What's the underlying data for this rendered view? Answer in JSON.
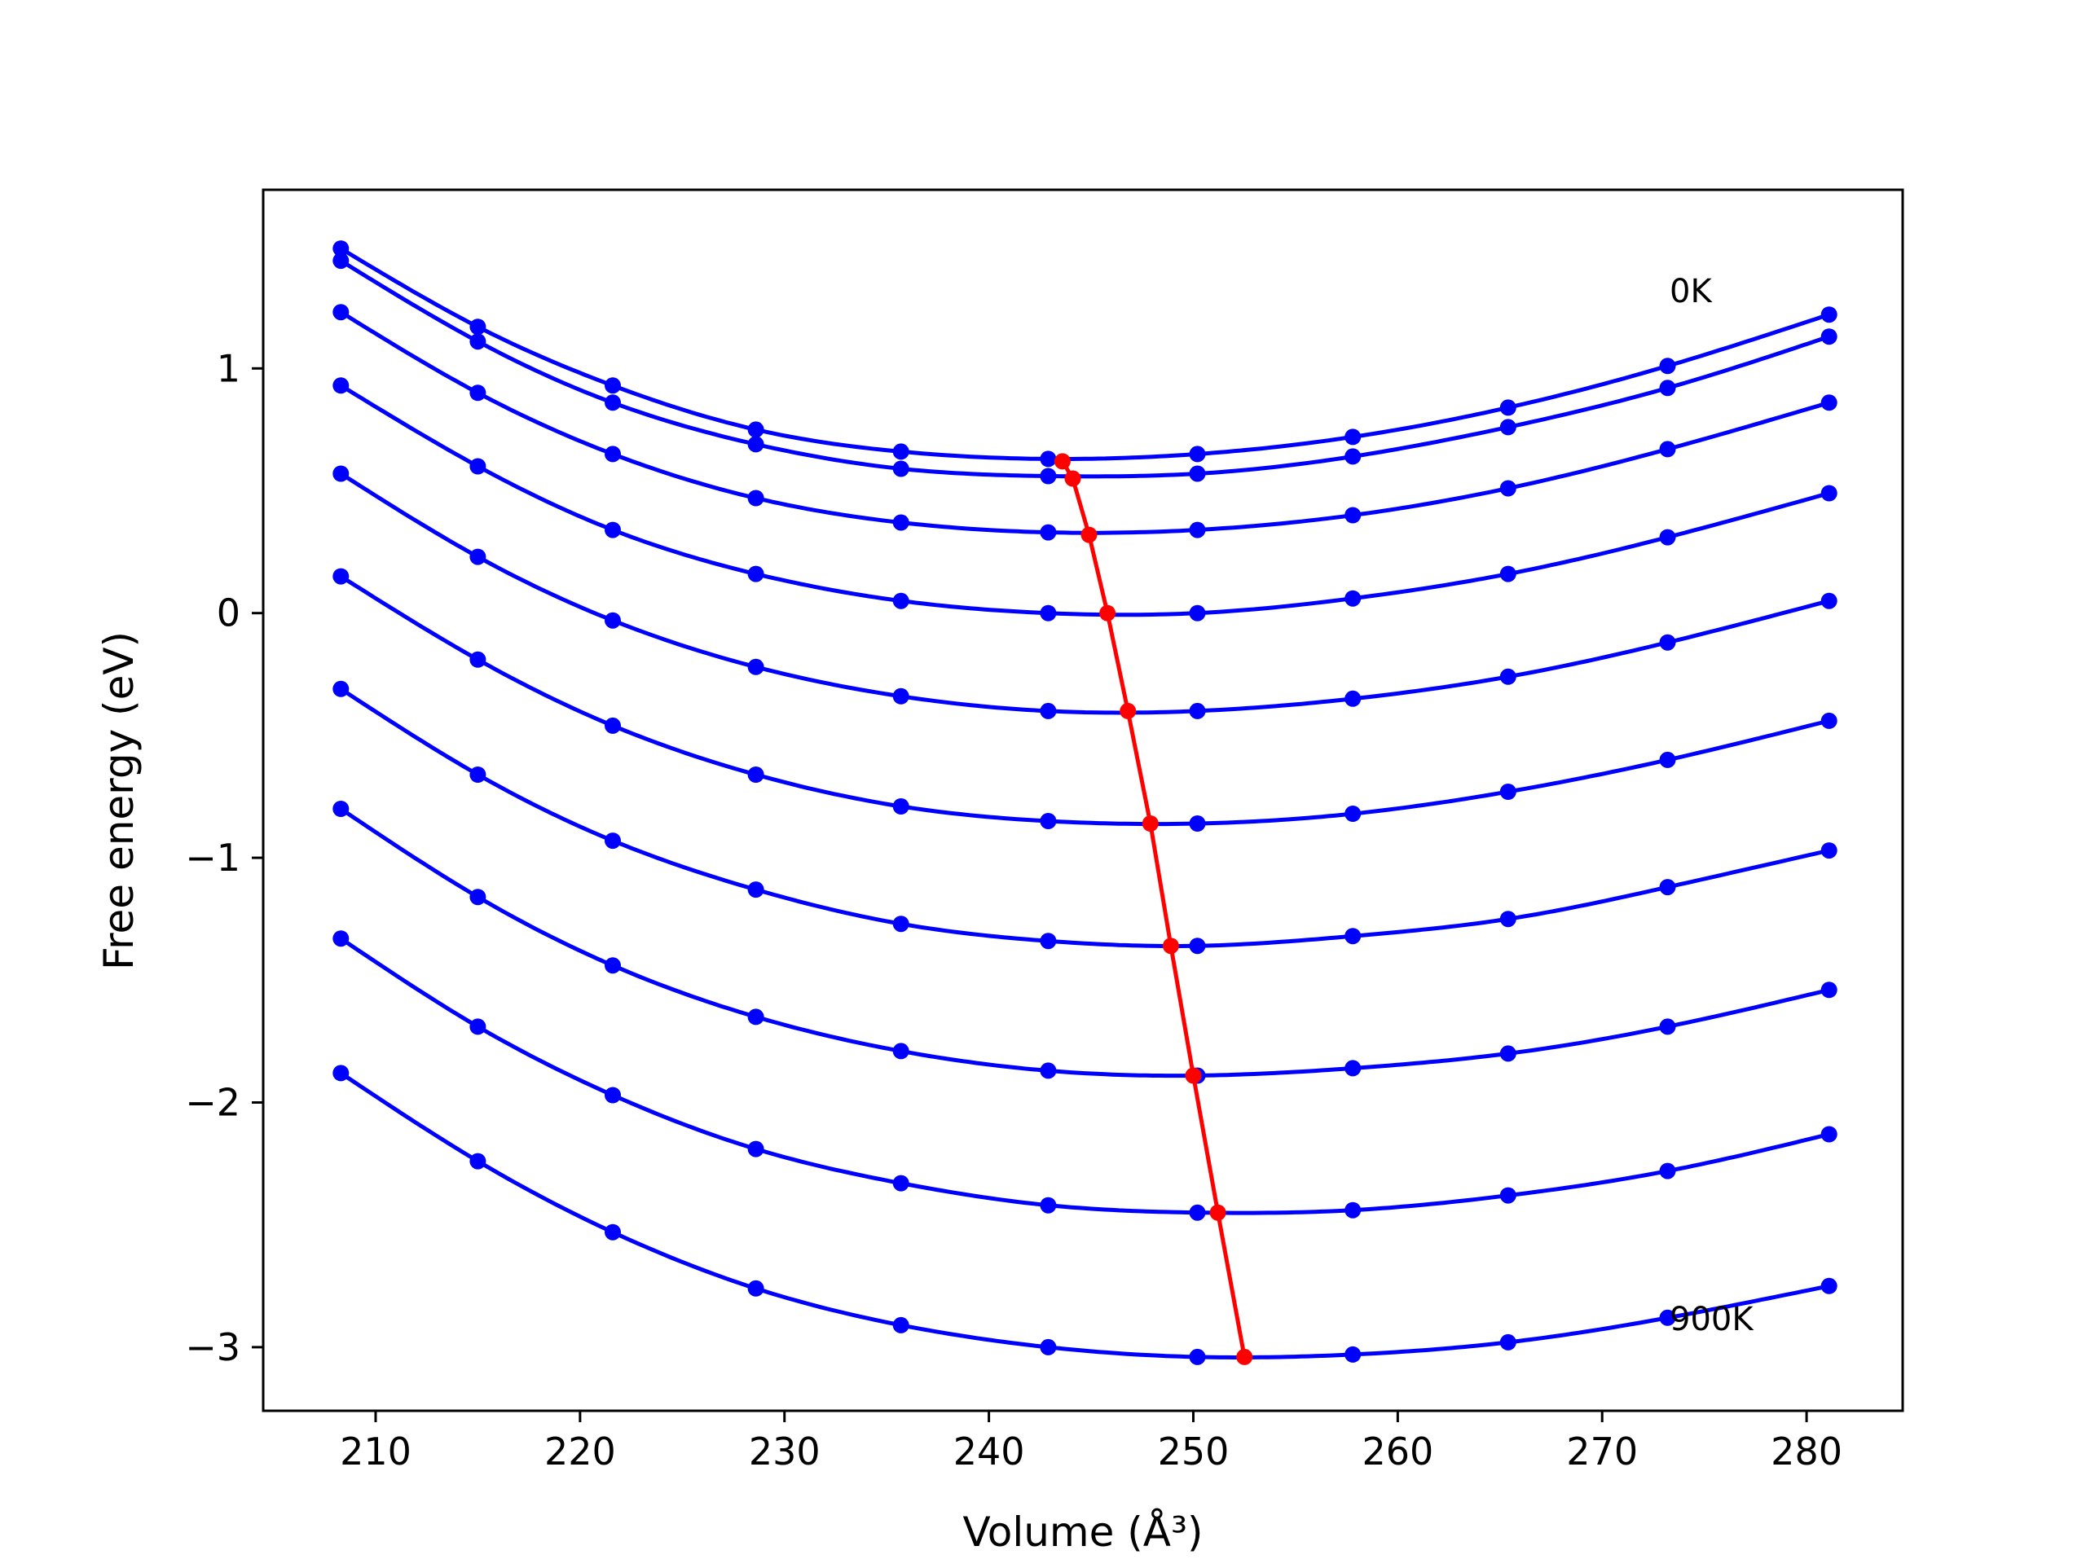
{
  "chart_data": {
    "type": "line",
    "xlabel": "Volume (Å³)",
    "ylabel": "Free energy (eV)",
    "xlim": [
      204.5,
      284.7
    ],
    "ylim": [
      -3.26,
      1.73
    ],
    "xticks": [
      210,
      220,
      230,
      240,
      250,
      260,
      270,
      280
    ],
    "yticks": [
      -3,
      -2,
      -1,
      0,
      1
    ],
    "ytick_labels": [
      "−3",
      "−2",
      "−1",
      "0",
      "1"
    ],
    "grid": false,
    "annotations": [
      {
        "text": "0K",
        "x": 273.3,
        "y": 1.27
      },
      {
        "text": "900K",
        "x": 273.3,
        "y": -2.93
      }
    ],
    "x": [
      208.3,
      215.0,
      221.6,
      228.6,
      235.7,
      242.9,
      250.2,
      257.8,
      265.4,
      273.2,
      281.1
    ],
    "series": [
      {
        "values": [
          1.49,
          1.17,
          0.93,
          0.75,
          0.66,
          0.63,
          0.65,
          0.72,
          0.84,
          1.01,
          1.22
        ]
      },
      {
        "values": [
          1.44,
          1.11,
          0.86,
          0.69,
          0.59,
          0.56,
          0.57,
          0.64,
          0.76,
          0.92,
          1.13
        ]
      },
      {
        "values": [
          1.23,
          0.9,
          0.65,
          0.47,
          0.37,
          0.33,
          0.34,
          0.4,
          0.51,
          0.67,
          0.86
        ]
      },
      {
        "values": [
          0.93,
          0.6,
          0.34,
          0.16,
          0.05,
          0.0,
          0.0,
          0.06,
          0.16,
          0.31,
          0.49
        ]
      },
      {
        "values": [
          0.57,
          0.23,
          -0.03,
          -0.22,
          -0.34,
          -0.4,
          -0.4,
          -0.35,
          -0.26,
          -0.12,
          0.05
        ]
      },
      {
        "values": [
          0.15,
          -0.19,
          -0.46,
          -0.66,
          -0.79,
          -0.85,
          -0.86,
          -0.82,
          -0.73,
          -0.6,
          -0.44
        ]
      },
      {
        "values": [
          -0.31,
          -0.66,
          -0.93,
          -1.13,
          -1.27,
          -1.34,
          -1.36,
          -1.32,
          -1.25,
          -1.12,
          -0.97
        ]
      },
      {
        "values": [
          -0.8,
          -1.16,
          -1.44,
          -1.65,
          -1.79,
          -1.87,
          -1.89,
          -1.86,
          -1.8,
          -1.69,
          -1.54
        ]
      },
      {
        "values": [
          -1.33,
          -1.69,
          -1.97,
          -2.19,
          -2.33,
          -2.42,
          -2.45,
          -2.44,
          -2.38,
          -2.28,
          -2.13
        ]
      },
      {
        "values": [
          -1.88,
          -2.24,
          -2.53,
          -2.76,
          -2.91,
          -3.0,
          -3.04,
          -3.03,
          -2.98,
          -2.88,
          -2.75
        ]
      }
    ],
    "minima": {
      "x": [
        243.6,
        244.1,
        244.9,
        245.8,
        246.8,
        247.9,
        248.9,
        250.0,
        251.2,
        252.5
      ],
      "y": [
        0.62,
        0.55,
        0.32,
        0.0,
        -0.4,
        -0.86,
        -1.36,
        -1.89,
        -2.45,
        -3.04
      ]
    },
    "colors": {
      "curves": "#0000ff",
      "minima": "#ff0000",
      "frame": "#000000"
    }
  }
}
